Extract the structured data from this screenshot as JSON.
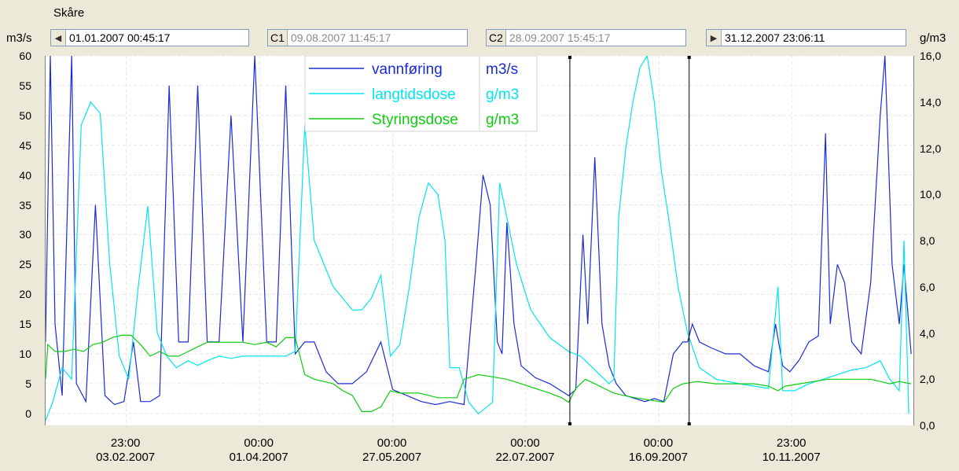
{
  "window": {
    "title": "Skåre"
  },
  "axes": {
    "left_unit": "m3/s",
    "right_unit": "g/m3"
  },
  "controls": {
    "start": {
      "value": "01.01.2007 00:45:17",
      "nav_icon": "prev-icon"
    },
    "c1": {
      "tag": "C1",
      "value": "09.08.2007 11:45:17"
    },
    "c2": {
      "tag": "C2",
      "value": "28.09.2007 15:45:17"
    },
    "end": {
      "value": "31.12.2007 23:06:11",
      "nav_icon": "next-icon"
    }
  },
  "chart_data": {
    "type": "line",
    "title": "Skåre",
    "x_range": [
      "2007-01-01T00:45:17",
      "2007-12-31T23:06:11"
    ],
    "y_left": {
      "label": "m3/s",
      "range": [
        -2,
        60
      ],
      "ticks": [
        0,
        5,
        10,
        15,
        20,
        25,
        30,
        35,
        40,
        45,
        50,
        55,
        60
      ]
    },
    "y_right": {
      "label": "g/m3",
      "range": [
        0,
        16
      ],
      "ticks": [
        "0,0",
        "2,0",
        "4,0",
        "6,0",
        "8,0",
        "10,0",
        "12,0",
        "14,0",
        "16,0"
      ]
    },
    "x_ticks": [
      {
        "time": "23:00",
        "date": "03.02.2007"
      },
      {
        "time": "00:00",
        "date": "01.04.2007"
      },
      {
        "time": "00:00",
        "date": "27.05.2007"
      },
      {
        "time": "00:00",
        "date": "22.07.2007"
      },
      {
        "time": "00:00",
        "date": "16.09.2007"
      },
      {
        "time": "23:00",
        "date": "10.11.2007"
      }
    ],
    "cursors": [
      {
        "name": "C1",
        "date": "2007-08-09T11:45:17"
      },
      {
        "name": "C2",
        "date": "2007-09-28T15:45:17"
      }
    ],
    "grid": true,
    "legend_position": "top-center",
    "series": [
      {
        "name": "vannføring",
        "unit": "m3/s",
        "axis": "left",
        "color": "#1a2bd6",
        "points": [
          [
            "2007-01-01",
            12
          ],
          [
            "2007-01-03",
            60
          ],
          [
            "2007-01-05",
            15
          ],
          [
            "2007-01-08",
            3
          ],
          [
            "2007-01-12",
            60
          ],
          [
            "2007-01-14",
            5
          ],
          [
            "2007-01-18",
            2
          ],
          [
            "2007-01-22",
            35
          ],
          [
            "2007-01-26",
            3
          ],
          [
            "2007-01-30",
            1.5
          ],
          [
            "2007-02-03",
            2
          ],
          [
            "2007-02-07",
            12
          ],
          [
            "2007-02-10",
            2
          ],
          [
            "2007-02-14",
            2
          ],
          [
            "2007-02-18",
            3
          ],
          [
            "2007-02-22",
            55
          ],
          [
            "2007-02-26",
            12
          ],
          [
            "2007-03-02",
            12
          ],
          [
            "2007-03-06",
            55
          ],
          [
            "2007-03-10",
            12
          ],
          [
            "2007-03-15",
            12
          ],
          [
            "2007-03-20",
            50
          ],
          [
            "2007-03-25",
            12
          ],
          [
            "2007-03-30",
            60
          ],
          [
            "2007-04-04",
            12
          ],
          [
            "2007-04-08",
            12
          ],
          [
            "2007-04-12",
            55
          ],
          [
            "2007-04-16",
            10
          ],
          [
            "2007-04-20",
            12
          ],
          [
            "2007-04-24",
            12
          ],
          [
            "2007-04-29",
            7
          ],
          [
            "2007-05-04",
            5
          ],
          [
            "2007-05-10",
            5
          ],
          [
            "2007-05-16",
            7
          ],
          [
            "2007-05-22",
            12
          ],
          [
            "2007-05-27",
            4
          ],
          [
            "2007-06-02",
            3
          ],
          [
            "2007-06-08",
            2
          ],
          [
            "2007-06-14",
            1.5
          ],
          [
            "2007-06-20",
            2
          ],
          [
            "2007-06-26",
            1.5
          ],
          [
            "2007-07-01",
            25
          ],
          [
            "2007-07-04",
            40
          ],
          [
            "2007-07-07",
            35
          ],
          [
            "2007-07-10",
            12
          ],
          [
            "2007-07-12",
            10
          ],
          [
            "2007-07-14",
            32
          ],
          [
            "2007-07-17",
            15
          ],
          [
            "2007-07-20",
            8
          ],
          [
            "2007-07-26",
            6
          ],
          [
            "2007-08-01",
            5
          ],
          [
            "2007-08-05",
            4
          ],
          [
            "2007-08-09",
            3
          ],
          [
            "2007-08-12",
            4
          ],
          [
            "2007-08-15",
            30
          ],
          [
            "2007-08-17",
            15
          ],
          [
            "2007-08-20",
            43
          ],
          [
            "2007-08-23",
            15
          ],
          [
            "2007-08-26",
            8
          ],
          [
            "2007-08-29",
            5
          ],
          [
            "2007-09-02",
            3
          ],
          [
            "2007-09-06",
            2.5
          ],
          [
            "2007-09-10",
            2
          ],
          [
            "2007-09-14",
            2.5
          ],
          [
            "2007-09-18",
            2
          ],
          [
            "2007-09-22",
            10
          ],
          [
            "2007-09-26",
            12
          ],
          [
            "2007-09-28",
            12
          ],
          [
            "2007-09-30",
            15
          ],
          [
            "2007-10-03",
            12
          ],
          [
            "2007-10-08",
            11
          ],
          [
            "2007-10-14",
            10
          ],
          [
            "2007-10-20",
            10
          ],
          [
            "2007-10-26",
            8
          ],
          [
            "2007-11-01",
            7
          ],
          [
            "2007-11-04",
            15
          ],
          [
            "2007-11-07",
            8
          ],
          [
            "2007-11-10",
            7
          ],
          [
            "2007-11-14",
            9
          ],
          [
            "2007-11-18",
            12
          ],
          [
            "2007-11-22",
            13
          ],
          [
            "2007-11-25",
            47
          ],
          [
            "2007-11-27",
            15
          ],
          [
            "2007-11-30",
            25
          ],
          [
            "2007-12-03",
            22
          ],
          [
            "2007-12-06",
            12
          ],
          [
            "2007-12-10",
            10
          ],
          [
            "2007-12-14",
            22
          ],
          [
            "2007-12-18",
            50
          ],
          [
            "2007-12-20",
            60
          ],
          [
            "2007-12-23",
            25
          ],
          [
            "2007-12-26",
            15
          ],
          [
            "2007-12-28",
            25
          ],
          [
            "2007-12-31",
            10
          ]
        ]
      },
      {
        "name": "langtidsdose",
        "unit": "g/m3",
        "axis": "right",
        "color": "#00e5f0",
        "points": [
          [
            "2007-01-01",
            0.2
          ],
          [
            "2007-01-04",
            1.0
          ],
          [
            "2007-01-08",
            2.5
          ],
          [
            "2007-01-12",
            2.0
          ],
          [
            "2007-01-16",
            13.0
          ],
          [
            "2007-01-20",
            14.0
          ],
          [
            "2007-01-24",
            13.5
          ],
          [
            "2007-01-28",
            7.0
          ],
          [
            "2007-02-01",
            3.0
          ],
          [
            "2007-02-05",
            2.0
          ],
          [
            "2007-02-09",
            6.0
          ],
          [
            "2007-02-13",
            9.5
          ],
          [
            "2007-02-17",
            4.0
          ],
          [
            "2007-02-21",
            3.0
          ],
          [
            "2007-02-25",
            2.5
          ],
          [
            "2007-03-02",
            2.8
          ],
          [
            "2007-03-06",
            2.6
          ],
          [
            "2007-03-10",
            2.8
          ],
          [
            "2007-03-15",
            3.0
          ],
          [
            "2007-03-20",
            2.9
          ],
          [
            "2007-03-25",
            3.0
          ],
          [
            "2007-03-30",
            3.0
          ],
          [
            "2007-04-04",
            3.0
          ],
          [
            "2007-04-08",
            3.0
          ],
          [
            "2007-04-12",
            3.0
          ],
          [
            "2007-04-16",
            3.2
          ],
          [
            "2007-04-20",
            13.0
          ],
          [
            "2007-04-24",
            8.0
          ],
          [
            "2007-04-28",
            7.0
          ],
          [
            "2007-05-02",
            6.0
          ],
          [
            "2007-05-06",
            5.5
          ],
          [
            "2007-05-10",
            5.0
          ],
          [
            "2007-05-14",
            5.0
          ],
          [
            "2007-05-18",
            5.5
          ],
          [
            "2007-05-22",
            6.5
          ],
          [
            "2007-05-26",
            3.0
          ],
          [
            "2007-05-30",
            3.5
          ],
          [
            "2007-06-03",
            6.0
          ],
          [
            "2007-06-07",
            9.0
          ],
          [
            "2007-06-11",
            10.5
          ],
          [
            "2007-06-15",
            10.0
          ],
          [
            "2007-06-18",
            8.0
          ],
          [
            "2007-06-20",
            2.5
          ],
          [
            "2007-06-24",
            2.5
          ],
          [
            "2007-06-28",
            1.0
          ],
          [
            "2007-07-02",
            0.5
          ],
          [
            "2007-07-08",
            1.0
          ],
          [
            "2007-07-11",
            10.5
          ],
          [
            "2007-07-14",
            9.0
          ],
          [
            "2007-07-18",
            7.0
          ],
          [
            "2007-07-24",
            5.0
          ],
          [
            "2007-08-01",
            3.8
          ],
          [
            "2007-08-09",
            3.2
          ],
          [
            "2007-08-14",
            3.0
          ],
          [
            "2007-08-18",
            2.6
          ],
          [
            "2007-08-22",
            2.2
          ],
          [
            "2007-08-26",
            1.8
          ],
          [
            "2007-08-28",
            2.0
          ],
          [
            "2007-08-30",
            9.0
          ],
          [
            "2007-09-02",
            12.0
          ],
          [
            "2007-09-05",
            14.0
          ],
          [
            "2007-09-08",
            15.5
          ],
          [
            "2007-09-11",
            16.0
          ],
          [
            "2007-09-14",
            14.0
          ],
          [
            "2007-09-17",
            11.0
          ],
          [
            "2007-09-20",
            9.0
          ],
          [
            "2007-09-24",
            6.0
          ],
          [
            "2007-09-28",
            4.0
          ],
          [
            "2007-10-03",
            2.5
          ],
          [
            "2007-10-10",
            2.0
          ],
          [
            "2007-10-20",
            1.8
          ],
          [
            "2007-11-01",
            1.6
          ],
          [
            "2007-11-05",
            6.0
          ],
          [
            "2007-11-07",
            1.5
          ],
          [
            "2007-11-12",
            1.5
          ],
          [
            "2007-11-18",
            1.8
          ],
          [
            "2007-11-24",
            2.0
          ],
          [
            "2007-11-30",
            2.2
          ],
          [
            "2007-12-06",
            2.4
          ],
          [
            "2007-12-12",
            2.5
          ],
          [
            "2007-12-18",
            2.8
          ],
          [
            "2007-12-22",
            2.0
          ],
          [
            "2007-12-26",
            1.5
          ],
          [
            "2007-12-28",
            8.0
          ],
          [
            "2007-12-30",
            0.5
          ]
        ]
      },
      {
        "name": "Styringsdose",
        "unit": "g/m3",
        "axis": "right",
        "color": "#10cc10",
        "points": [
          [
            "2007-01-01",
            2.0
          ],
          [
            "2007-01-02",
            3.5
          ],
          [
            "2007-01-05",
            3.2
          ],
          [
            "2007-01-09",
            3.2
          ],
          [
            "2007-01-13",
            3.3
          ],
          [
            "2007-01-17",
            3.2
          ],
          [
            "2007-01-21",
            3.5
          ],
          [
            "2007-01-25",
            3.6
          ],
          [
            "2007-01-29",
            3.8
          ],
          [
            "2007-02-02",
            3.9
          ],
          [
            "2007-02-06",
            3.9
          ],
          [
            "2007-02-10",
            3.5
          ],
          [
            "2007-02-14",
            3.0
          ],
          [
            "2007-02-18",
            3.2
          ],
          [
            "2007-02-22",
            3.0
          ],
          [
            "2007-02-26",
            3.0
          ],
          [
            "2007-03-02",
            3.2
          ],
          [
            "2007-03-06",
            3.4
          ],
          [
            "2007-03-10",
            3.6
          ],
          [
            "2007-03-15",
            3.6
          ],
          [
            "2007-03-20",
            3.6
          ],
          [
            "2007-03-25",
            3.6
          ],
          [
            "2007-03-30",
            3.5
          ],
          [
            "2007-04-04",
            3.6
          ],
          [
            "2007-04-08",
            3.4
          ],
          [
            "2007-04-12",
            3.8
          ],
          [
            "2007-04-16",
            3.8
          ],
          [
            "2007-04-20",
            2.2
          ],
          [
            "2007-04-24",
            2.0
          ],
          [
            "2007-04-28",
            1.9
          ],
          [
            "2007-05-02",
            1.8
          ],
          [
            "2007-05-06",
            1.5
          ],
          [
            "2007-05-10",
            1.3
          ],
          [
            "2007-05-14",
            0.6
          ],
          [
            "2007-05-18",
            0.6
          ],
          [
            "2007-05-22",
            0.8
          ],
          [
            "2007-05-26",
            1.5
          ],
          [
            "2007-05-30",
            1.4
          ],
          [
            "2007-06-03",
            1.4
          ],
          [
            "2007-06-07",
            1.4
          ],
          [
            "2007-06-11",
            1.3
          ],
          [
            "2007-06-15",
            1.2
          ],
          [
            "2007-06-19",
            1.2
          ],
          [
            "2007-06-23",
            1.2
          ],
          [
            "2007-06-26",
            2.0
          ],
          [
            "2007-07-02",
            2.2
          ],
          [
            "2007-07-08",
            2.1
          ],
          [
            "2007-07-14",
            2.0
          ],
          [
            "2007-07-20",
            1.8
          ],
          [
            "2007-07-26",
            1.6
          ],
          [
            "2007-08-01",
            1.4
          ],
          [
            "2007-08-06",
            1.2
          ],
          [
            "2007-08-09",
            1.0
          ],
          [
            "2007-08-12",
            1.6
          ],
          [
            "2007-08-16",
            2.0
          ],
          [
            "2007-08-20",
            1.8
          ],
          [
            "2007-08-24",
            1.6
          ],
          [
            "2007-08-28",
            1.4
          ],
          [
            "2007-09-01",
            1.3
          ],
          [
            "2007-09-06",
            1.2
          ],
          [
            "2007-09-12",
            1.1
          ],
          [
            "2007-09-18",
            1.0
          ],
          [
            "2007-09-22",
            1.6
          ],
          [
            "2007-09-26",
            1.8
          ],
          [
            "2007-10-02",
            1.9
          ],
          [
            "2007-10-10",
            1.8
          ],
          [
            "2007-10-18",
            1.8
          ],
          [
            "2007-10-26",
            1.8
          ],
          [
            "2007-11-01",
            1.7
          ],
          [
            "2007-11-05",
            1.5
          ],
          [
            "2007-11-08",
            1.7
          ],
          [
            "2007-11-14",
            1.8
          ],
          [
            "2007-11-20",
            1.9
          ],
          [
            "2007-11-26",
            2.0
          ],
          [
            "2007-12-02",
            2.0
          ],
          [
            "2007-12-08",
            2.0
          ],
          [
            "2007-12-14",
            2.0
          ],
          [
            "2007-12-18",
            1.9
          ],
          [
            "2007-12-22",
            1.8
          ],
          [
            "2007-12-26",
            1.9
          ],
          [
            "2007-12-31",
            1.8
          ]
        ]
      }
    ]
  }
}
